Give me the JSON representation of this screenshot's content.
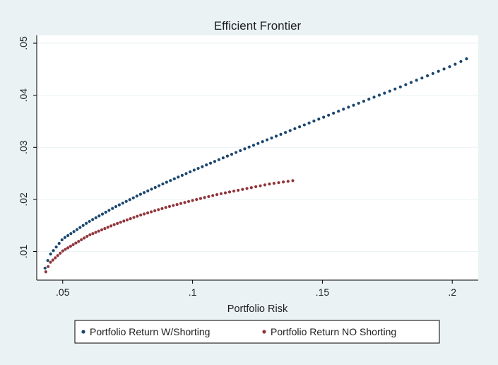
{
  "chart_data": {
    "type": "scatter",
    "title": "Efficient Frontier",
    "xlabel": "Portfolio Risk",
    "ylabel": "",
    "xlim": [
      0.04,
      0.21
    ],
    "ylim": [
      0.0045,
      0.0515
    ],
    "x_ticks": [
      0.05,
      0.1,
      0.15,
      0.2
    ],
    "x_tick_labels": [
      ".05",
      ".1",
      ".15",
      ".2"
    ],
    "y_ticks": [
      0.01,
      0.02,
      0.03,
      0.04,
      0.05
    ],
    "y_tick_labels": [
      ".01",
      ".02",
      ".03",
      ".04",
      ".05"
    ],
    "grid": true,
    "legend_position": "bottom",
    "series": [
      {
        "name": "Portfolio Return W/Shorting",
        "color": "#1a476f",
        "x_min": 0.0432,
        "x_max": 0.2055,
        "y_start": 0.0068,
        "y_vertex": 0.0067,
        "y_end": 0.047,
        "shape": "frontier-upper",
        "points": [
          [
            0.0432,
            0.0068
          ],
          [
            0.045,
            0.0093
          ],
          [
            0.05,
            0.0124
          ],
          [
            0.06,
            0.0157
          ],
          [
            0.07,
            0.0185
          ],
          [
            0.08,
            0.021
          ],
          [
            0.09,
            0.0233
          ],
          [
            0.1,
            0.0255
          ],
          [
            0.12,
            0.0297
          ],
          [
            0.14,
            0.0337
          ],
          [
            0.16,
            0.0377
          ],
          [
            0.18,
            0.0416
          ],
          [
            0.2,
            0.0457
          ],
          [
            0.2055,
            0.047
          ]
        ]
      },
      {
        "name": "Portfolio Return NO Shorting",
        "color": "#90353b",
        "x_min": 0.0435,
        "x_max": 0.1386,
        "y_start": 0.0061,
        "y_end": 0.0236,
        "shape": "frontier-concave",
        "points": [
          [
            0.0435,
            0.0061
          ],
          [
            0.045,
            0.0078
          ],
          [
            0.05,
            0.0101
          ],
          [
            0.06,
            0.0131
          ],
          [
            0.07,
            0.0152
          ],
          [
            0.08,
            0.017
          ],
          [
            0.09,
            0.0185
          ],
          [
            0.1,
            0.0198
          ],
          [
            0.11,
            0.021
          ],
          [
            0.12,
            0.022
          ],
          [
            0.13,
            0.023
          ],
          [
            0.1386,
            0.0236
          ]
        ]
      }
    ]
  }
}
